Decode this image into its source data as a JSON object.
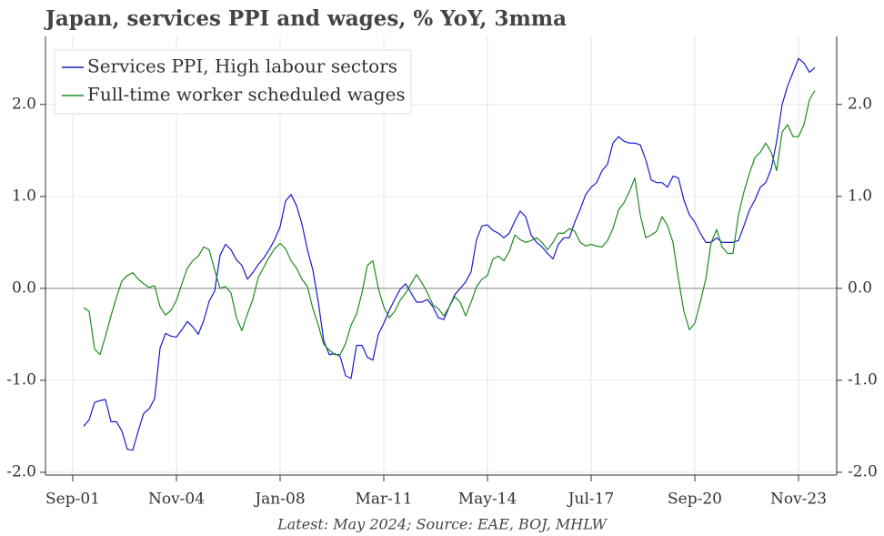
{
  "chart_data": {
    "type": "line",
    "title": "Japan, services PPI and wages, % YoY, 3mma",
    "footnote": "Latest: May 2024; Source: EAE, BOJ, MHLW",
    "x": [
      "2002-01",
      "2002-03",
      "2002-05",
      "2002-07",
      "2002-09",
      "2002-11",
      "2003-01",
      "2003-03",
      "2003-05",
      "2003-07",
      "2003-09",
      "2003-11",
      "2004-01",
      "2004-03",
      "2004-05",
      "2004-07",
      "2004-09",
      "2004-11",
      "2005-01",
      "2005-03",
      "2005-05",
      "2005-07",
      "2005-09",
      "2005-11",
      "2006-01",
      "2006-03",
      "2006-05",
      "2006-07",
      "2006-09",
      "2006-11",
      "2007-01",
      "2007-03",
      "2007-05",
      "2007-07",
      "2007-09",
      "2007-11",
      "2008-01",
      "2008-03",
      "2008-05",
      "2008-07",
      "2008-09",
      "2008-11",
      "2009-01",
      "2009-03",
      "2009-05",
      "2009-07",
      "2009-09",
      "2009-11",
      "2010-01",
      "2010-03",
      "2010-05",
      "2010-07",
      "2010-09",
      "2010-11",
      "2011-01",
      "2011-03",
      "2011-05",
      "2011-07",
      "2011-09",
      "2011-11",
      "2012-01",
      "2012-03",
      "2012-05",
      "2012-07",
      "2012-09",
      "2012-11",
      "2013-01",
      "2013-03",
      "2013-05",
      "2013-07",
      "2013-09",
      "2013-11",
      "2014-01",
      "2014-03",
      "2014-05",
      "2014-07",
      "2014-09",
      "2014-11",
      "2015-01",
      "2015-03",
      "2015-05",
      "2015-07",
      "2015-09",
      "2015-11",
      "2016-01",
      "2016-03",
      "2016-05",
      "2016-07",
      "2016-09",
      "2016-11",
      "2017-01",
      "2017-03",
      "2017-05",
      "2017-07",
      "2017-09",
      "2017-11",
      "2018-01",
      "2018-03",
      "2018-05",
      "2018-07",
      "2018-09",
      "2018-11",
      "2019-01",
      "2019-03",
      "2019-05",
      "2019-07",
      "2019-09",
      "2019-11",
      "2020-01",
      "2020-03",
      "2020-05",
      "2020-07",
      "2020-09",
      "2020-11",
      "2021-01",
      "2021-03",
      "2021-05",
      "2021-07",
      "2021-09",
      "2021-11",
      "2022-01",
      "2022-03",
      "2022-05",
      "2022-07",
      "2022-09",
      "2022-11",
      "2023-01",
      "2023-03",
      "2023-05",
      "2023-07",
      "2023-09",
      "2023-11",
      "2024-01",
      "2024-03",
      "2024-05"
    ],
    "series": [
      {
        "name": "Services PPI, High labour sectors",
        "color": "#1a1acc",
        "values": [
          -1.5,
          -1.43,
          -1.24,
          -1.22,
          -1.21,
          -1.45,
          -1.45,
          -1.55,
          -1.75,
          -1.76,
          -1.55,
          -1.36,
          -1.31,
          -1.2,
          -0.65,
          -0.49,
          -0.52,
          -0.53,
          -0.45,
          -0.36,
          -0.42,
          -0.5,
          -0.35,
          -0.14,
          -0.03,
          0.36,
          0.48,
          0.42,
          0.31,
          0.25,
          0.1,
          0.17,
          0.26,
          0.33,
          0.42,
          0.53,
          0.67,
          0.95,
          1.02,
          0.9,
          0.7,
          0.42,
          0.2,
          -0.15,
          -0.57,
          -0.72,
          -0.71,
          -0.74,
          -0.95,
          -0.98,
          -0.62,
          -0.62,
          -0.75,
          -0.78,
          -0.5,
          -0.38,
          -0.24,
          -0.12,
          -0.01,
          0.05,
          -0.05,
          -0.15,
          -0.15,
          -0.12,
          -0.2,
          -0.32,
          -0.34,
          -0.2,
          -0.07,
          0.0,
          0.07,
          0.18,
          0.53,
          0.68,
          0.69,
          0.63,
          0.6,
          0.55,
          0.6,
          0.73,
          0.84,
          0.78,
          0.58,
          0.5,
          0.45,
          0.38,
          0.32,
          0.48,
          0.55,
          0.55,
          0.72,
          0.86,
          1.02,
          1.1,
          1.15,
          1.28,
          1.35,
          1.58,
          1.65,
          1.6,
          1.58,
          1.58,
          1.56,
          1.4,
          1.18,
          1.15,
          1.15,
          1.1,
          1.22,
          1.2,
          0.96,
          0.8,
          0.72,
          0.6,
          0.5,
          0.5,
          0.55,
          0.5,
          0.5,
          0.5,
          0.52,
          0.68,
          0.85,
          0.96,
          1.1,
          1.15,
          1.3,
          1.6,
          2.0,
          2.2,
          2.35,
          2.5,
          2.45,
          2.35,
          2.4
        ]
      },
      {
        "name": "Full-time worker scheduled wages",
        "color": "#1f8a1f",
        "values": [
          -0.21,
          -0.25,
          -0.66,
          -0.72,
          -0.52,
          -0.3,
          -0.1,
          0.08,
          0.14,
          0.17,
          0.1,
          0.05,
          0.01,
          0.03,
          -0.2,
          -0.29,
          -0.24,
          -0.13,
          0.05,
          0.22,
          0.3,
          0.35,
          0.45,
          0.42,
          0.2,
          0.0,
          0.02,
          -0.05,
          -0.32,
          -0.46,
          -0.28,
          -0.12,
          0.12,
          0.23,
          0.34,
          0.43,
          0.49,
          0.43,
          0.3,
          0.22,
          0.1,
          0.02,
          -0.22,
          -0.4,
          -0.61,
          -0.67,
          -0.72,
          -0.72,
          -0.6,
          -0.4,
          -0.28,
          -0.05,
          0.25,
          0.3,
          0.0,
          -0.2,
          -0.32,
          -0.25,
          -0.13,
          -0.05,
          0.05,
          0.15,
          0.06,
          -0.05,
          -0.18,
          -0.22,
          -0.3,
          -0.2,
          -0.09,
          -0.15,
          -0.3,
          -0.15,
          0.02,
          0.1,
          0.14,
          0.32,
          0.35,
          0.3,
          0.4,
          0.58,
          0.53,
          0.5,
          0.52,
          0.55,
          0.5,
          0.42,
          0.5,
          0.6,
          0.6,
          0.65,
          0.62,
          0.5,
          0.46,
          0.48,
          0.46,
          0.45,
          0.52,
          0.65,
          0.85,
          0.93,
          1.05,
          1.2,
          0.8,
          0.55,
          0.58,
          0.62,
          0.78,
          0.68,
          0.5,
          0.1,
          -0.25,
          -0.45,
          -0.38,
          -0.15,
          0.1,
          0.5,
          0.64,
          0.45,
          0.38,
          0.38,
          0.8,
          1.05,
          1.25,
          1.42,
          1.48,
          1.58,
          1.48,
          1.28,
          1.7,
          1.78,
          1.65,
          1.65,
          1.78,
          2.05,
          2.15
        ]
      }
    ],
    "xlim": [
      "2000-11",
      "2025-01"
    ],
    "xticks": [
      {
        "value": "2001-09",
        "label": "Sep-01"
      },
      {
        "value": "2004-11",
        "label": "Nov-04"
      },
      {
        "value": "2008-01",
        "label": "Jan-08"
      },
      {
        "value": "2011-03",
        "label": "Mar-11"
      },
      {
        "value": "2014-05",
        "label": "May-14"
      },
      {
        "value": "2017-07",
        "label": "Jul-17"
      },
      {
        "value": "2020-09",
        "label": "Sep-20"
      },
      {
        "value": "2023-11",
        "label": "Nov-23"
      }
    ],
    "ylim": [
      -2.03,
      2.74
    ],
    "yticks": [
      {
        "value": -2,
        "label": "-2.0"
      },
      {
        "value": -1,
        "label": "-1.0"
      },
      {
        "value": 0,
        "label": "0.0"
      },
      {
        "value": 1,
        "label": "1.0"
      },
      {
        "value": 2,
        "label": "2.0"
      }
    ],
    "grid": true,
    "zero_line": true,
    "legend": "upper left",
    "mirror_y_axis": true
  }
}
